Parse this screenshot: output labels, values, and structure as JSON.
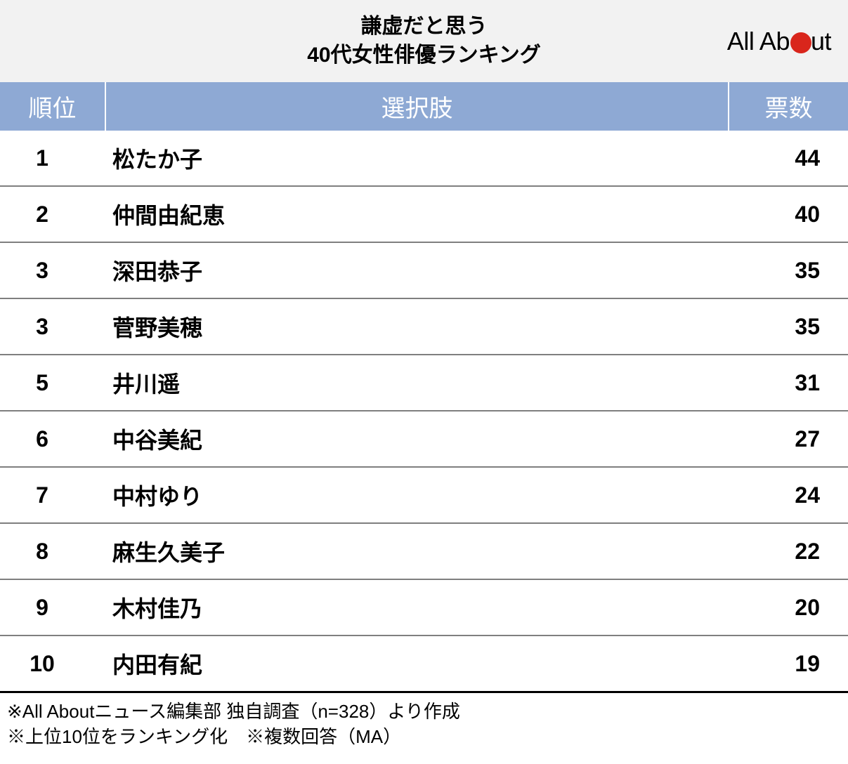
{
  "header": {
    "title_line1": "謙虚だと思う",
    "title_line2": "40代女性俳優ランキング",
    "logo_before": "All Ab",
    "logo_after": "ut",
    "logo_dot_color": "#d9261c"
  },
  "table": {
    "header_bg": "#8ea9d4",
    "header_text_color": "#ffffff",
    "row_border_color": "#7f7f7f",
    "last_border_color": "#000000",
    "columns": {
      "rank": "順位",
      "choice": "選択肢",
      "votes": "票数"
    },
    "rows": [
      {
        "rank": "1",
        "choice": "松たか子",
        "votes": "44"
      },
      {
        "rank": "2",
        "choice": "仲間由紀恵",
        "votes": "40"
      },
      {
        "rank": "3",
        "choice": "深田恭子",
        "votes": "35"
      },
      {
        "rank": "3",
        "choice": "菅野美穂",
        "votes": "35"
      },
      {
        "rank": "5",
        "choice": "井川遥",
        "votes": "31"
      },
      {
        "rank": "6",
        "choice": "中谷美紀",
        "votes": "27"
      },
      {
        "rank": "7",
        "choice": "中村ゆり",
        "votes": "24"
      },
      {
        "rank": "8",
        "choice": "麻生久美子",
        "votes": "22"
      },
      {
        "rank": "9",
        "choice": "木村佳乃",
        "votes": "20"
      },
      {
        "rank": "10",
        "choice": "内田有紀",
        "votes": "19"
      }
    ]
  },
  "footnotes": {
    "line1": "※All Aboutニュース編集部 独自調査（n=328）より作成",
    "line2": "※上位10位をランキング化　※複数回答（MA）"
  },
  "styling": {
    "header_bg": "#f2f2f2",
    "title_fontsize": 30,
    "th_fontsize": 34,
    "td_fontsize": 32,
    "footnote_fontsize": 26
  }
}
